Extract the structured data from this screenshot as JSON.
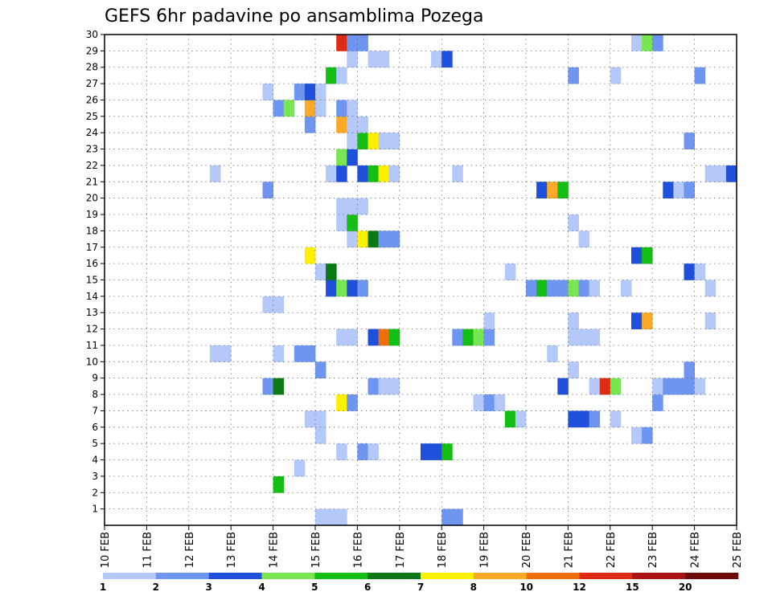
{
  "chart_data": {
    "type": "heatmap",
    "title": "GEFS 6hr padavine po ansamblima Pozega",
    "xlabel": "",
    "ylabel": "",
    "x_tick_labels": [
      "10 FEB",
      "11 FEB",
      "12 FEB",
      "13 FEB",
      "14 FEB",
      "15 FEB",
      "16 FEB",
      "17 FEB",
      "18 FEB",
      "19 FEB",
      "20 FEB",
      "21 FEB",
      "22 FEB",
      "23 FEB",
      "24 FEB",
      "25 FEB"
    ],
    "x_range_days": [
      10,
      25
    ],
    "y_tick_labels": [
      "1",
      "2",
      "3",
      "4",
      "5",
      "6",
      "7",
      "8",
      "9",
      "10",
      "11",
      "12",
      "13",
      "14",
      "15",
      "16",
      "17",
      "18",
      "19",
      "20",
      "21",
      "22",
      "23",
      "24",
      "25",
      "26",
      "27",
      "28",
      "29",
      "30"
    ],
    "y_range": [
      0,
      30
    ],
    "grid": true,
    "colorbar": {
      "labels": [
        "1",
        "2",
        "3",
        "4",
        "5",
        "6",
        "7",
        "8",
        "10",
        "12",
        "15",
        "20"
      ],
      "colors": [
        "#b4c8fa",
        "#6e96f0",
        "#1e50dc",
        "#78e650",
        "#14be14",
        "#0a7814",
        "#fff000",
        "#faaa28",
        "#f06e0a",
        "#dc2d14",
        "#aa1414",
        "#6e0a0a"
      ]
    },
    "cell_levels_note": "level index into colorbar.colors (0 = 1-2 mm, 1 = 2-3, 2 = 3-4, 3 = 4-5, 4 = 5-6, 5 = 6-7, 6 = 7-8, 7 = 8-10, 8 = 10-12, 9 = 12-15)",
    "cells": [
      {
        "member": 0,
        "time": "15.0",
        "level": 0
      },
      {
        "member": 0,
        "time": "15.25",
        "level": 0
      },
      {
        "member": 0,
        "time": "15.5",
        "level": 0
      },
      {
        "member": 0,
        "time": "18.0",
        "level": 1
      },
      {
        "member": 0,
        "time": "18.25",
        "level": 1
      },
      {
        "member": 2,
        "time": "14.0",
        "level": 4
      },
      {
        "member": 3,
        "time": "14.5",
        "level": 0
      },
      {
        "member": 4,
        "time": "15.5",
        "level": 0
      },
      {
        "member": 4,
        "time": "16.0",
        "level": 1
      },
      {
        "member": 4,
        "time": "16.25",
        "level": 0
      },
      {
        "member": 4,
        "time": "17.5",
        "level": 2
      },
      {
        "member": 4,
        "time": "17.75",
        "level": 2
      },
      {
        "member": 4,
        "time": "18.0",
        "level": 4
      },
      {
        "member": 5,
        "time": "15.0",
        "level": 0
      },
      {
        "member": 5,
        "time": "22.5",
        "level": 0
      },
      {
        "member": 5,
        "time": "22.75",
        "level": 1
      },
      {
        "member": 6,
        "time": "14.75",
        "level": 0
      },
      {
        "member": 6,
        "time": "15.0",
        "level": 0
      },
      {
        "member": 6,
        "time": "19.5",
        "level": 4
      },
      {
        "member": 6,
        "time": "19.75",
        "level": 0
      },
      {
        "member": 6,
        "time": "21.0",
        "level": 2
      },
      {
        "member": 6,
        "time": "21.25",
        "level": 2
      },
      {
        "member": 6,
        "time": "21.5",
        "level": 1
      },
      {
        "member": 6,
        "time": "22.0",
        "level": 0
      },
      {
        "member": 7,
        "time": "15.5",
        "level": 6
      },
      {
        "member": 7,
        "time": "15.75",
        "level": 1
      },
      {
        "member": 7,
        "time": "18.75",
        "level": 0
      },
      {
        "member": 7,
        "time": "19.0",
        "level": 1
      },
      {
        "member": 7,
        "time": "19.25",
        "level": 0
      },
      {
        "member": 7,
        "time": "23.0",
        "level": 1
      },
      {
        "member": 8,
        "time": "13.75",
        "level": 1
      },
      {
        "member": 8,
        "time": "14.0",
        "level": 5
      },
      {
        "member": 8,
        "time": "16.25",
        "level": 1
      },
      {
        "member": 8,
        "time": "16.5",
        "level": 0
      },
      {
        "member": 8,
        "time": "16.75",
        "level": 0
      },
      {
        "member": 8,
        "time": "20.75",
        "level": 2
      },
      {
        "member": 8,
        "time": "21.5",
        "level": 0
      },
      {
        "member": 8,
        "time": "21.75",
        "level": 9
      },
      {
        "member": 8,
        "time": "22.0",
        "level": 3
      },
      {
        "member": 8,
        "time": "23.0",
        "level": 0
      },
      {
        "member": 8,
        "time": "23.25",
        "level": 1
      },
      {
        "member": 8,
        "time": "23.5",
        "level": 1
      },
      {
        "member": 8,
        "time": "23.75",
        "level": 1
      },
      {
        "member": 8,
        "time": "24.0",
        "level": 0
      },
      {
        "member": 9,
        "time": "15.0",
        "level": 1
      },
      {
        "member": 9,
        "time": "21.0",
        "level": 0
      },
      {
        "member": 9,
        "time": "23.75",
        "level": 1
      },
      {
        "member": 10,
        "time": "12.5",
        "level": 0
      },
      {
        "member": 10,
        "time": "12.75",
        "level": 0
      },
      {
        "member": 10,
        "time": "14.0",
        "level": 0
      },
      {
        "member": 10,
        "time": "14.5",
        "level": 1
      },
      {
        "member": 10,
        "time": "14.75",
        "level": 1
      },
      {
        "member": 10,
        "time": "20.5",
        "level": 0
      },
      {
        "member": 11,
        "time": "15.5",
        "level": 0
      },
      {
        "member": 11,
        "time": "15.75",
        "level": 0
      },
      {
        "member": 11,
        "time": "16.25",
        "level": 2
      },
      {
        "member": 11,
        "time": "16.5",
        "level": 8
      },
      {
        "member": 11,
        "time": "16.75",
        "level": 4
      },
      {
        "member": 11,
        "time": "18.25",
        "level": 1
      },
      {
        "member": 11,
        "time": "18.5",
        "level": 4
      },
      {
        "member": 11,
        "time": "18.75",
        "level": 3
      },
      {
        "member": 11,
        "time": "19.0",
        "level": 1
      },
      {
        "member": 11,
        "time": "21.0",
        "level": 0
      },
      {
        "member": 11,
        "time": "21.25",
        "level": 0
      },
      {
        "member": 11,
        "time": "21.5",
        "level": 0
      },
      {
        "member": 12,
        "time": "19.0",
        "level": 0
      },
      {
        "member": 12,
        "time": "21.0",
        "level": 0
      },
      {
        "member": 12,
        "time": "22.5",
        "level": 2
      },
      {
        "member": 12,
        "time": "22.75",
        "level": 7
      },
      {
        "member": 12,
        "time": "24.25",
        "level": 0
      },
      {
        "member": 13,
        "time": "13.75",
        "level": 0
      },
      {
        "member": 13,
        "time": "14.0",
        "level": 0
      },
      {
        "member": 14,
        "time": "15.25",
        "level": 2
      },
      {
        "member": 14,
        "time": "15.5",
        "level": 3
      },
      {
        "member": 14,
        "time": "15.75",
        "level": 2
      },
      {
        "member": 14,
        "time": "16.0",
        "level": 1
      },
      {
        "member": 14,
        "time": "20.0",
        "level": 1
      },
      {
        "member": 14,
        "time": "20.25",
        "level": 4
      },
      {
        "member": 14,
        "time": "20.5",
        "level": 1
      },
      {
        "member": 14,
        "time": "20.75",
        "level": 1
      },
      {
        "member": 14,
        "time": "21.0",
        "level": 3
      },
      {
        "member": 14,
        "time": "21.25",
        "level": 1
      },
      {
        "member": 14,
        "time": "21.5",
        "level": 0
      },
      {
        "member": 14,
        "time": "22.25",
        "level": 0
      },
      {
        "member": 14,
        "time": "24.25",
        "level": 0
      },
      {
        "member": 15,
        "time": "15.0",
        "level": 0
      },
      {
        "member": 15,
        "time": "15.25",
        "level": 5
      },
      {
        "member": 15,
        "time": "19.5",
        "level": 0
      },
      {
        "member": 15,
        "time": "23.75",
        "level": 2
      },
      {
        "member": 15,
        "time": "24.0",
        "level": 0
      },
      {
        "member": 16,
        "time": "14.75",
        "level": 6
      },
      {
        "member": 16,
        "time": "22.5",
        "level": 2
      },
      {
        "member": 16,
        "time": "22.75",
        "level": 4
      },
      {
        "member": 17,
        "time": "15.75",
        "level": 0
      },
      {
        "member": 17,
        "time": "16.0",
        "level": 6
      },
      {
        "member": 17,
        "time": "16.25",
        "level": 5
      },
      {
        "member": 17,
        "time": "16.5",
        "level": 1
      },
      {
        "member": 17,
        "time": "16.75",
        "level": 1
      },
      {
        "member": 17,
        "time": "21.25",
        "level": 0
      },
      {
        "member": 18,
        "time": "15.5",
        "level": 0
      },
      {
        "member": 18,
        "time": "15.75",
        "level": 4
      },
      {
        "member": 18,
        "time": "21.0",
        "level": 0
      },
      {
        "member": 19,
        "time": "15.5",
        "level": 0
      },
      {
        "member": 19,
        "time": "15.75",
        "level": 0
      },
      {
        "member": 19,
        "time": "16.0",
        "level": 0
      },
      {
        "member": 20,
        "time": "13.75",
        "level": 1
      },
      {
        "member": 20,
        "time": "20.25",
        "level": 2
      },
      {
        "member": 20,
        "time": "20.5",
        "level": 7
      },
      {
        "member": 20,
        "time": "20.75",
        "level": 4
      },
      {
        "member": 20,
        "time": "23.25",
        "level": 2
      },
      {
        "member": 20,
        "time": "23.5",
        "level": 0
      },
      {
        "member": 20,
        "time": "23.75",
        "level": 1
      },
      {
        "member": 21,
        "time": "12.5",
        "level": 0
      },
      {
        "member": 21,
        "time": "15.25",
        "level": 0
      },
      {
        "member": 21,
        "time": "15.5",
        "level": 2
      },
      {
        "member": 21,
        "time": "16.0",
        "level": 2
      },
      {
        "member": 21,
        "time": "16.25",
        "level": 4
      },
      {
        "member": 21,
        "time": "16.5",
        "level": 6
      },
      {
        "member": 21,
        "time": "16.75",
        "level": 0
      },
      {
        "member": 21,
        "time": "18.25",
        "level": 0
      },
      {
        "member": 21,
        "time": "24.25",
        "level": 0
      },
      {
        "member": 21,
        "time": "24.5",
        "level": 0
      },
      {
        "member": 21,
        "time": "24.75",
        "level": 2
      },
      {
        "member": 22,
        "time": "15.5",
        "level": 3
      },
      {
        "member": 22,
        "time": "15.75",
        "level": 2
      },
      {
        "member": 23,
        "time": "15.75",
        "level": 0
      },
      {
        "member": 23,
        "time": "16.0",
        "level": 4
      },
      {
        "member": 23,
        "time": "16.25",
        "level": 6
      },
      {
        "member": 23,
        "time": "16.5",
        "level": 0
      },
      {
        "member": 23,
        "time": "16.75",
        "level": 0
      },
      {
        "member": 23,
        "time": "23.75",
        "level": 1
      },
      {
        "member": 24,
        "time": "14.75",
        "level": 1
      },
      {
        "member": 24,
        "time": "15.5",
        "level": 7
      },
      {
        "member": 24,
        "time": "15.75",
        "level": 0
      },
      {
        "member": 24,
        "time": "16.0",
        "level": 0
      },
      {
        "member": 25,
        "time": "14.0",
        "level": 1
      },
      {
        "member": 25,
        "time": "14.25",
        "level": 3
      },
      {
        "member": 25,
        "time": "14.75",
        "level": 7
      },
      {
        "member": 25,
        "time": "15.0",
        "level": 0
      },
      {
        "member": 25,
        "time": "15.5",
        "level": 1
      },
      {
        "member": 25,
        "time": "15.75",
        "level": 0
      },
      {
        "member": 26,
        "time": "13.75",
        "level": 0
      },
      {
        "member": 26,
        "time": "14.5",
        "level": 1
      },
      {
        "member": 26,
        "time": "14.75",
        "level": 2
      },
      {
        "member": 26,
        "time": "15.0",
        "level": 0
      },
      {
        "member": 27,
        "time": "15.25",
        "level": 4
      },
      {
        "member": 27,
        "time": "15.5",
        "level": 0
      },
      {
        "member": 27,
        "time": "21.0",
        "level": 1
      },
      {
        "member": 27,
        "time": "22.0",
        "level": 0
      },
      {
        "member": 27,
        "time": "24.0",
        "level": 1
      },
      {
        "member": 28,
        "time": "15.75",
        "level": 0
      },
      {
        "member": 28,
        "time": "16.25",
        "level": 0
      },
      {
        "member": 28,
        "time": "16.5",
        "level": 0
      },
      {
        "member": 28,
        "time": "17.75",
        "level": 0
      },
      {
        "member": 28,
        "time": "18.0",
        "level": 2
      },
      {
        "member": 29,
        "time": "15.5",
        "level": 9
      },
      {
        "member": 29,
        "time": "15.75",
        "level": 1
      },
      {
        "member": 29,
        "time": "16.0",
        "level": 1
      },
      {
        "member": 29,
        "time": "22.5",
        "level": 0
      },
      {
        "member": 29,
        "time": "22.75",
        "level": 3
      },
      {
        "member": 29,
        "time": "23.0",
        "level": 1
      }
    ]
  }
}
